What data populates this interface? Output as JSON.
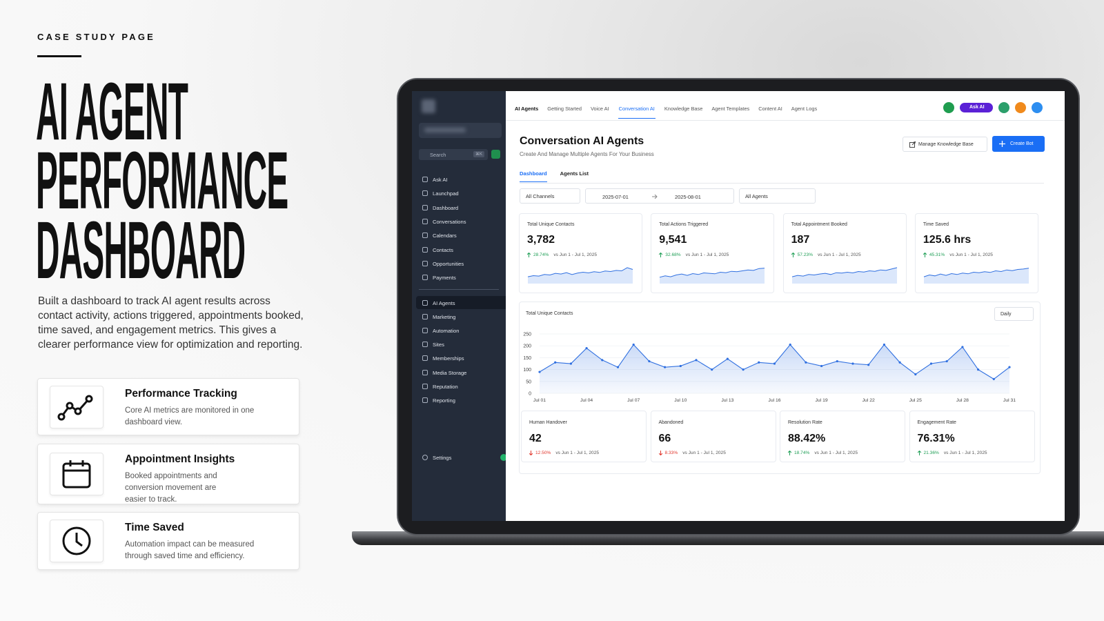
{
  "header": {
    "eyebrow": "CASE STUDY PAGE",
    "title_lines": [
      "AI AGENT",
      "PERFORMANCE",
      "DASHBOARD"
    ],
    "description": "Built a dashboard to track AI agent results across contact activity, actions triggered, appointments booked, time saved, and engagement metrics. This gives a clearer performance view for optimization and reporting."
  },
  "features": [
    {
      "title": "Performance Tracking",
      "text": "Core AI metrics are monitored in one dashboard view."
    },
    {
      "title": "Appointment Insights",
      "text": "Booked appointments and conversion movement are easier to track."
    },
    {
      "title": "Time Saved",
      "text": "Automation impact can be measured through saved time and efficiency."
    }
  ],
  "app": {
    "sidebar": {
      "search": "Search",
      "shortcut": "⌘K",
      "nav": [
        "Ask AI",
        "Launchpad",
        "Dashboard",
        "Conversations",
        "Calendars",
        "Contacts",
        "Opportunities",
        "Payments"
      ],
      "nav2": [
        "AI Agents",
        "Marketing",
        "Automation",
        "Sites",
        "Memberships",
        "Media Storage",
        "Reputation",
        "Reporting"
      ],
      "active_nav2": 0,
      "settings": "Settings"
    },
    "tabs": [
      "AI Agents",
      "Getting Started",
      "Voice AI",
      "Conversation AI",
      "Knowledge Base",
      "Agent Templates",
      "Content AI",
      "Agent Logs"
    ],
    "active_tab": 3,
    "ask_ai": "Ask AI",
    "page_title": "Conversation AI Agents",
    "page_subtitle": "Create And Manage Multiple Agents For Your Business",
    "manage_button": "Manage Knowledge Base",
    "create_button": "Create Bot",
    "subtabs": [
      "Dashboard",
      "Agents List"
    ],
    "active_subtab": 0,
    "filters": {
      "channel": "All Channels",
      "start": "2025-07-01",
      "end": "2025-08-01",
      "agents": "All Agents"
    },
    "spark_ylim": [
      0,
      100
    ],
    "kpis": [
      {
        "label": "Total Unique Contacts",
        "value": "3,782",
        "change": "28.74%",
        "direction": "up",
        "compare": "vs Jun 1 - Jul 1, 2025",
        "spark": [
          30,
          35,
          33,
          40,
          38,
          45,
          42,
          48,
          40,
          46,
          50,
          47,
          52,
          49,
          55,
          53,
          58,
          56,
          70,
          62
        ]
      },
      {
        "label": "Total Actions Triggered",
        "value": "9,541",
        "change": "32.68%",
        "direction": "up",
        "compare": "vs Jun 1 - Jul 1, 2025",
        "spark": [
          28,
          34,
          30,
          38,
          42,
          36,
          44,
          40,
          47,
          45,
          43,
          50,
          48,
          54,
          52,
          56,
          60,
          58,
          66,
          68
        ]
      },
      {
        "label": "Total Appointment Booked",
        "value": "187",
        "change": "57.23%",
        "direction": "up",
        "compare": "vs Jun 1 - Jul 1, 2025",
        "spark": [
          30,
          36,
          33,
          40,
          38,
          42,
          45,
          40,
          48,
          46,
          50,
          47,
          53,
          51,
          56,
          54,
          60,
          58,
          64,
          70
        ]
      },
      {
        "label": "Time Saved",
        "value": "125.6 hrs",
        "change": "45.31%",
        "direction": "up",
        "compare": "vs Jun 1 - Jul 1, 2025",
        "spark": [
          30,
          38,
          34,
          42,
          36,
          44,
          40,
          46,
          43,
          50,
          48,
          52,
          49,
          56,
          53,
          60,
          57,
          62,
          64,
          68
        ]
      }
    ],
    "chart": {
      "type": "line",
      "title": "Total Unique Contacts",
      "period": "Daily",
      "color": "#2f6fe0",
      "categories": [
        "Jul 01",
        null,
        null,
        "Jul 04",
        null,
        null,
        "Jul 07",
        null,
        null,
        "Jul 10",
        null,
        null,
        "Jul 13",
        null,
        null,
        "Jul 16",
        null,
        null,
        "Jul 19",
        null,
        null,
        "Jul 22",
        null,
        null,
        "Jul 25",
        null,
        null,
        "Jul 28",
        null,
        null,
        "Jul 31"
      ],
      "values": [
        90,
        130,
        125,
        190,
        140,
        110,
        205,
        135,
        110,
        115,
        140,
        100,
        145,
        100,
        130,
        125,
        205,
        130,
        115,
        135,
        125,
        120,
        205,
        130,
        80,
        125,
        135,
        195,
        100,
        60,
        110
      ],
      "ylim": [
        0,
        250
      ],
      "yticks": [
        0,
        50,
        100,
        150,
        200,
        250
      ]
    },
    "metrics": [
      {
        "label": "Human Handover",
        "value": "42",
        "change": "12.50%",
        "direction": "down",
        "compare": "vs Jun 1 - Jul 1, 2025"
      },
      {
        "label": "Abandoned",
        "value": "66",
        "change": "8.33%",
        "direction": "down",
        "compare": "vs Jun 1 - Jul 1, 2025"
      },
      {
        "label": "Resolution Rate",
        "value": "88.42%",
        "change": "18.74%",
        "direction": "up",
        "compare": "vs Jun 1 - Jul 1, 2025"
      },
      {
        "label": "Engagement Rate",
        "value": "76.31%",
        "change": "21.36%",
        "direction": "up",
        "compare": "vs Jun 1 - Jul 1, 2025"
      }
    ]
  }
}
